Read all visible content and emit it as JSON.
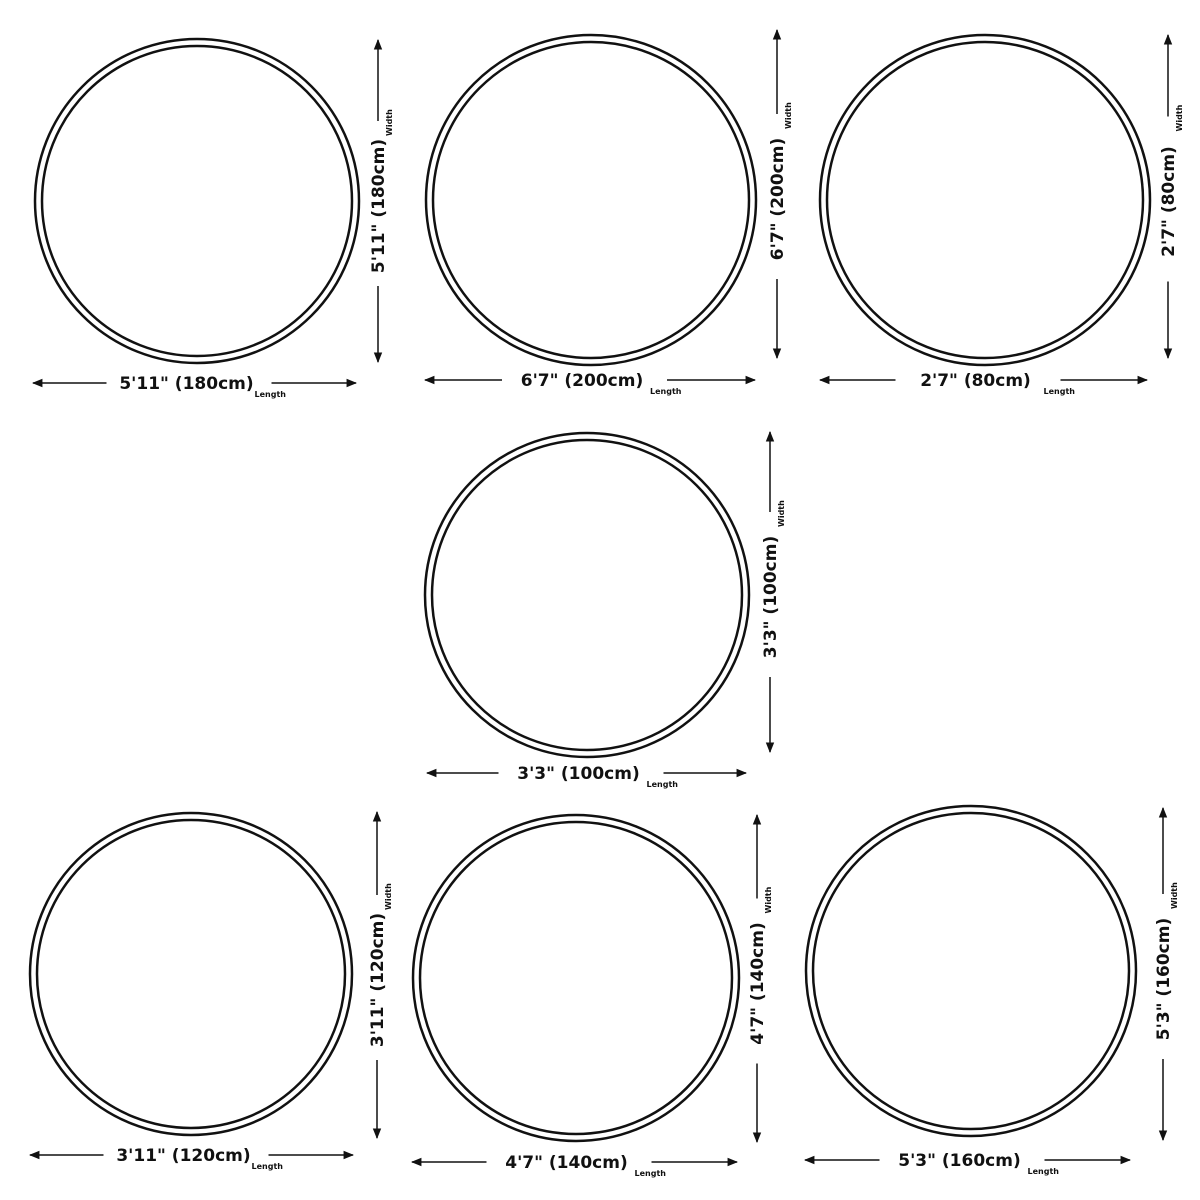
{
  "length_label": "Length",
  "width_label": "Width",
  "line_color": "#111111",
  "rugs": [
    {
      "shape": "round",
      "length": "5'11\" (180cm)",
      "width": "5'11\" (180cm)"
    },
    {
      "shape": "round",
      "length": "6'7\" (200cm)",
      "width": "6'7\" (200cm)"
    },
    {
      "shape": "round",
      "length": "2'7\" (80cm)",
      "width": "2'7\" (80cm)"
    },
    {
      "shape": "round",
      "length": "3'3\" (100cm)",
      "width": "3'3\" (100cm)"
    },
    {
      "shape": "round",
      "length": "3'11\" (120cm)",
      "width": "3'11\" (120cm)"
    },
    {
      "shape": "round",
      "length": "4'7\" (140cm)",
      "width": "4'7\" (140cm)"
    },
    {
      "shape": "round",
      "length": "5'3\" (160cm)",
      "width": "5'3\" (160cm)"
    }
  ]
}
